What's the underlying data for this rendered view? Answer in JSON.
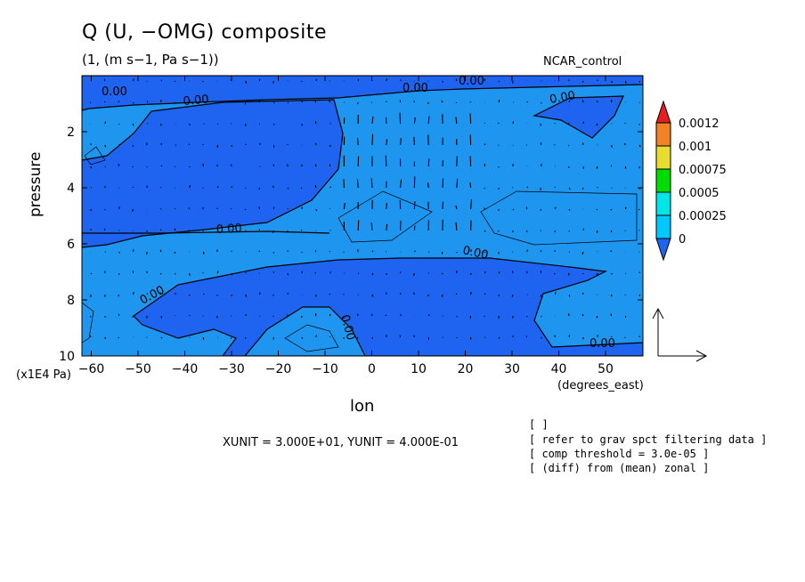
{
  "chart_data": {
    "type": "heatmap",
    "title": "Q (U, −OMG) composite",
    "subtitle": "(1, (m s−1, Pa s−1))",
    "case_label": "NCAR_control",
    "xlabel": "lon",
    "x_unit_label": "(degrees_east)",
    "ylabel": "pressure",
    "y_unit_label": "(x1E4 Pa)",
    "xlim": [
      -62,
      58
    ],
    "ylim": [
      0,
      10
    ],
    "y_inverted": true,
    "x_ticks": [
      "−60",
      "−50",
      "−40",
      "−30",
      "−20",
      "−10",
      "0",
      "10",
      "20",
      "30",
      "40",
      "50"
    ],
    "x_tick_values": [
      -60,
      -50,
      -40,
      -30,
      -20,
      -10,
      0,
      10,
      20,
      30,
      40,
      50
    ],
    "y_ticks": [
      "2",
      "4",
      "6",
      "8",
      "10"
    ],
    "y_tick_values": [
      2,
      4,
      6,
      8,
      10
    ],
    "contour_labels": [
      "0.00",
      "0.00",
      "0.00",
      "0.00",
      "0.00",
      "0.00",
      "0.00",
      "0.00",
      "0.00",
      "0.00"
    ],
    "colorbar": {
      "labels": [
        "0.0012",
        "0.001",
        "0.00075",
        "0.0005",
        "0.00025",
        "0"
      ],
      "levels": [
        0,
        0.00025,
        0.0005,
        0.00075,
        0.001,
        0.0012
      ],
      "colors": [
        "#1e64f0",
        "#00c8ff",
        "#00e6e6",
        "#00dc00",
        "#e6dc32",
        "#f08228",
        "#e61e1e"
      ]
    },
    "reference_vector": {
      "xunit": "3.000E+01",
      "yunit": "4.000E-01"
    },
    "vector_field": "arrows of (U, -OMG) composite on lon-pressure grid"
  },
  "units_text": "XUNIT = 3.000E+01, YUNIT = 4.000E-01",
  "notes": [
    "[  ]",
    "[ refer to grav spct filtering data ]",
    "[ comp threshold = 3.0e-05 ]",
    "[ (diff) from (mean) zonal ]"
  ]
}
